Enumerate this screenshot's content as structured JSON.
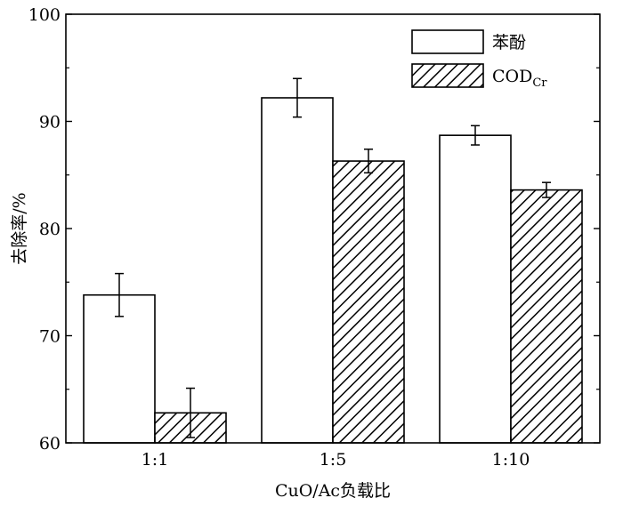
{
  "chart_data": {
    "type": "bar",
    "categories": [
      "1:1",
      "1:5",
      "1:10"
    ],
    "series": [
      {
        "name": "苯酚",
        "values": [
          73.8,
          92.2,
          88.7
        ],
        "errors": [
          2.0,
          1.8,
          0.9
        ],
        "fill": "white"
      },
      {
        "name_main": "COD",
        "name_sub": "Cr",
        "values": [
          62.8,
          86.3,
          83.6
        ],
        "errors": [
          2.3,
          1.1,
          0.7
        ],
        "fill": "hatched"
      }
    ],
    "xlabel": "CuO/Ac负载比",
    "ylabel": "去除率/%",
    "ylim": [
      60,
      100
    ],
    "yticks": [
      60,
      70,
      80,
      90,
      100
    ],
    "legend_position": "top-right",
    "grid": false
  }
}
